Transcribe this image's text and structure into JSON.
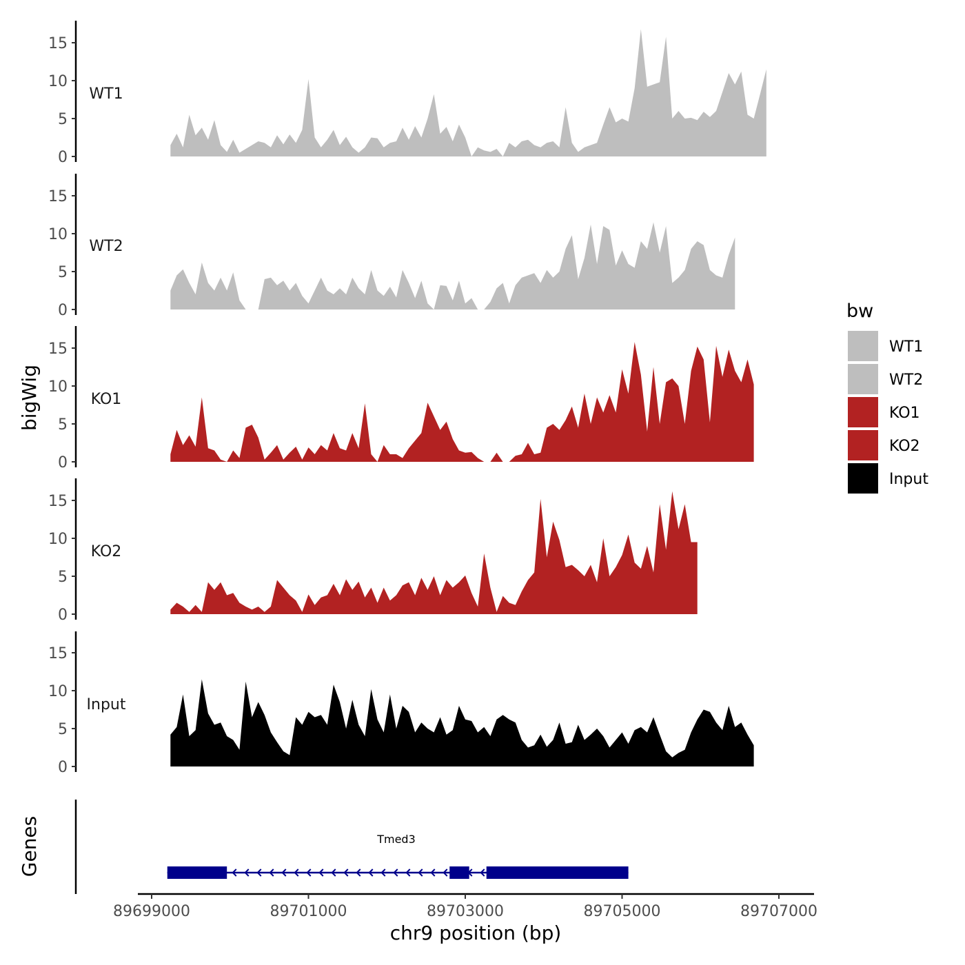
{
  "chart_data": {
    "type": "area",
    "ylabel": "bigWig",
    "xlabel": "chr9 position (bp)",
    "ylim": [
      0,
      17
    ],
    "yticks": [
      0,
      5,
      10,
      15
    ],
    "xlim": [
      89699000,
      89707000
    ],
    "xticks": [
      89699000,
      89701000,
      89703000,
      89705000,
      89707000
    ],
    "xtick_labels": [
      "89699000",
      "89701000",
      "89703000",
      "89705000",
      "89707000"
    ],
    "legend": {
      "title": "bw",
      "position": "right",
      "entries": [
        {
          "label": "WT1",
          "color": "#bebebe"
        },
        {
          "label": "WT2",
          "color": "#bebebe"
        },
        {
          "label": "KO1",
          "color": "#b22222"
        },
        {
          "label": "KO2",
          "color": "#b22222"
        },
        {
          "label": "Input",
          "color": "#000000"
        }
      ]
    },
    "x_start": 89699240,
    "x_step": 80,
    "tracks": [
      {
        "name": "WT1",
        "color": "#bebebe",
        "values": [
          1.5,
          3.0,
          1.2,
          5.5,
          2.8,
          3.8,
          2.2,
          4.8,
          1.5,
          0.6,
          2.2,
          0.5,
          1.0,
          1.5,
          2.0,
          1.8,
          1.2,
          2.8,
          1.6,
          2.9,
          1.8,
          3.5,
          10.2,
          2.5,
          1.2,
          2.2,
          3.5,
          1.5,
          2.6,
          1.2,
          0.5,
          1.2,
          2.5,
          2.4,
          1.2,
          1.8,
          2.0,
          3.8,
          2.2,
          4.0,
          2.5,
          5.0,
          8.2,
          3.0,
          3.9,
          2.0,
          4.2,
          2.5,
          0.0,
          1.2,
          0.8,
          0.6,
          1.0,
          0.0,
          1.8,
          1.2,
          2.0,
          2.2,
          1.5,
          1.2,
          1.8,
          2.0,
          1.2,
          6.5,
          1.8,
          0.6,
          1.2,
          1.5,
          1.8,
          4.2,
          6.5,
          4.5,
          5.0,
          4.6,
          9.0,
          16.8,
          9.2,
          9.5,
          9.8,
          15.8,
          5.0,
          6.0,
          5.0,
          5.1,
          4.8,
          5.9,
          5.2,
          6.0,
          8.5,
          11.0,
          9.5,
          11.2,
          5.5,
          5.0,
          8.2,
          11.5
        ]
      },
      {
        "name": "WT2",
        "color": "#bebebe",
        "values": [
          2.5,
          4.5,
          5.3,
          3.5,
          2.0,
          6.2,
          3.5,
          2.5,
          4.2,
          2.5,
          4.9,
          1.2,
          0.0,
          0.0,
          0.0,
          4.0,
          4.2,
          3.2,
          3.8,
          2.5,
          3.5,
          1.8,
          0.8,
          2.5,
          4.2,
          2.5,
          2.0,
          2.8,
          2.0,
          4.2,
          2.8,
          2.0,
          5.2,
          2.5,
          1.8,
          3.0,
          1.6,
          5.2,
          3.5,
          1.5,
          3.8,
          0.8,
          0.0,
          3.2,
          3.1,
          1.2,
          3.8,
          0.8,
          1.5,
          0.0,
          0.0,
          1.0,
          2.8,
          3.5,
          0.8,
          3.2,
          4.2,
          4.5,
          4.8,
          3.5,
          5.2,
          4.2,
          5.0,
          8.0,
          9.8,
          4.0,
          6.8,
          11.2,
          6.0,
          11.0,
          10.5,
          5.8,
          7.8,
          6.0,
          5.5,
          9.0,
          8.0,
          11.5,
          7.5,
          11.0,
          3.5,
          4.2,
          5.2,
          8.0,
          9.0,
          8.5,
          5.2,
          4.5,
          4.2,
          7.2,
          9.5
        ]
      },
      {
        "name": "KO1",
        "color": "#b22222",
        "values": [
          1.0,
          4.2,
          2.2,
          3.5,
          2.0,
          8.5,
          1.8,
          1.5,
          0.3,
          0.0,
          1.5,
          0.5,
          4.5,
          4.9,
          3.2,
          0.3,
          1.2,
          2.2,
          0.3,
          1.2,
          2.0,
          0.3,
          1.9,
          1.0,
          2.2,
          1.5,
          3.8,
          1.8,
          1.5,
          3.8,
          1.8,
          7.7,
          1.0,
          0.0,
          2.2,
          1.0,
          1.0,
          0.5,
          1.8,
          2.8,
          3.8,
          7.8,
          6.0,
          4.2,
          5.3,
          3.0,
          1.5,
          1.2,
          1.3,
          0.5,
          0.0,
          0.0,
          1.2,
          0.0,
          0.0,
          0.8,
          1.0,
          2.5,
          1.0,
          1.2,
          4.5,
          5.0,
          4.2,
          5.5,
          7.3,
          4.5,
          9.0,
          5.0,
          8.5,
          6.5,
          8.8,
          6.5,
          12.2,
          9.0,
          15.8,
          11.5,
          4.0,
          12.5,
          5.0,
          10.5,
          11.0,
          10.0,
          5.0,
          12.0,
          15.2,
          13.5,
          5.2,
          15.3,
          11.2,
          14.8,
          12.0,
          10.5,
          13.5,
          10.2
        ]
      },
      {
        "name": "KO2",
        "color": "#b22222",
        "values": [
          0.6,
          1.5,
          1.0,
          0.3,
          1.2,
          0.3,
          4.2,
          3.2,
          4.2,
          2.5,
          2.8,
          1.5,
          1.0,
          0.6,
          1.0,
          0.3,
          1.0,
          4.5,
          3.5,
          2.5,
          1.8,
          0.3,
          2.6,
          1.2,
          2.2,
          2.5,
          4.0,
          2.5,
          4.6,
          3.2,
          4.3,
          2.2,
          3.5,
          1.5,
          3.5,
          1.8,
          2.5,
          3.8,
          4.2,
          2.5,
          4.8,
          3.2,
          5.0,
          2.5,
          4.5,
          3.5,
          4.2,
          5.1,
          2.8,
          1.0,
          8.0,
          3.5,
          0.3,
          2.4,
          1.5,
          1.2,
          3.0,
          4.5,
          5.5,
          15.2,
          7.5,
          12.2,
          9.8,
          6.2,
          6.5,
          5.8,
          5.0,
          6.5,
          4.2,
          10.0,
          5.0,
          6.2,
          7.8,
          10.5,
          6.8,
          6.0,
          9.0,
          5.5,
          14.5,
          8.5,
          16.2,
          11.2,
          14.5,
          9.5,
          9.5
        ]
      },
      {
        "name": "Input",
        "color": "#000000",
        "values": [
          4.2,
          5.2,
          9.5,
          4.0,
          4.8,
          11.5,
          7.0,
          5.5,
          5.8,
          4.0,
          3.5,
          2.2,
          11.2,
          6.5,
          8.5,
          6.8,
          4.5,
          3.2,
          2.0,
          1.5,
          6.5,
          5.5,
          7.2,
          6.5,
          6.8,
          5.5,
          10.8,
          8.5,
          5.0,
          8.8,
          5.5,
          4.0,
          10.2,
          6.2,
          4.5,
          9.5,
          5.0,
          8.0,
          7.2,
          4.5,
          5.8,
          5.0,
          4.5,
          6.5,
          4.2,
          4.8,
          8.0,
          6.2,
          6.0,
          4.5,
          5.2,
          4.0,
          6.2,
          6.8,
          6.2,
          5.8,
          3.5,
          2.5,
          2.8,
          4.2,
          2.6,
          3.5,
          5.8,
          3.0,
          3.2,
          5.5,
          3.5,
          4.2,
          5.0,
          4.0,
          2.5,
          3.5,
          4.5,
          3.0,
          4.8,
          5.2,
          4.5,
          6.5,
          4.2,
          2.0,
          1.2,
          1.8,
          2.2,
          4.5,
          6.2,
          7.5,
          7.2,
          5.8,
          4.8,
          8.0,
          5.2,
          5.8,
          4.2,
          2.8
        ]
      }
    ],
    "gene_track": {
      "label": "Genes",
      "gene_name": "Tmed3",
      "color": "#00008b",
      "strand": "-",
      "start": 89699200,
      "end": 89705080,
      "exons": [
        [
          89699200,
          89699960
        ],
        [
          89702800,
          89703050
        ],
        [
          89703270,
          89705080
        ]
      ]
    }
  }
}
